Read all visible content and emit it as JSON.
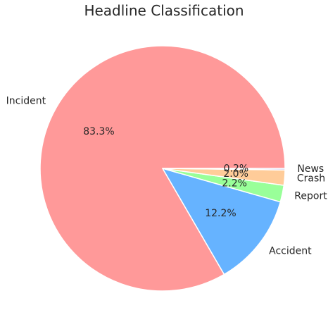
{
  "chart_data": {
    "type": "pie",
    "title": "Headline Classification",
    "slices": [
      {
        "label": "Incident",
        "value": 83.3,
        "pct_label": "83.3%",
        "color": "#ff9999"
      },
      {
        "label": "Accident",
        "value": 12.2,
        "pct_label": "12.2%",
        "color": "#66b3ff"
      },
      {
        "label": "Report",
        "value": 2.2,
        "pct_label": "2.2%",
        "color": "#99ff99"
      },
      {
        "label": "Crash",
        "value": 2.0,
        "pct_label": "2.0%",
        "color": "#ffcc99"
      },
      {
        "label": "News",
        "value": 0.2,
        "pct_label": "0.2%",
        "color": "#c2c2f0"
      }
    ],
    "start_angle": 0,
    "direction": "counterclockwise",
    "wedge_edge_color": "#ffffff",
    "legend": "none"
  }
}
